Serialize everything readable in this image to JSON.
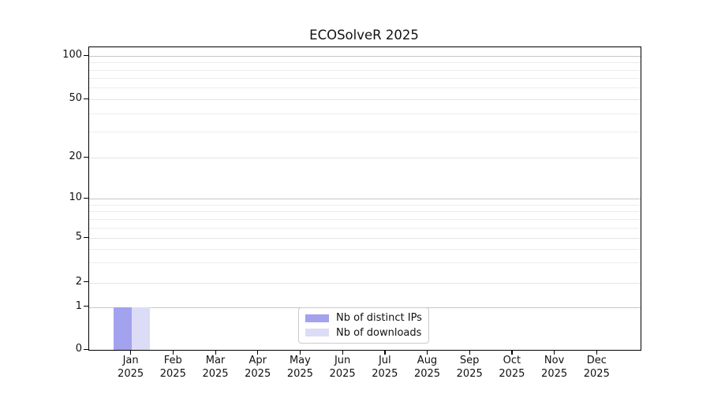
{
  "chart_data": {
    "type": "bar",
    "title": "ECOSolveR 2025",
    "categories": [
      "Jan 2025",
      "Feb 2025",
      "Mar 2025",
      "Apr 2025",
      "May 2025",
      "Jun 2025",
      "Jul 2025",
      "Aug 2025",
      "Sep 2025",
      "Oct 2025",
      "Nov 2025",
      "Dec 2025"
    ],
    "series": [
      {
        "name": "Nb of distinct IPs",
        "color": "#a2a2ef",
        "values": [
          1,
          0,
          0,
          0,
          0,
          0,
          0,
          0,
          0,
          0,
          0,
          0
        ]
      },
      {
        "name": "Nb of downloads",
        "color": "#dcdcf7",
        "values": [
          1,
          0,
          0,
          0,
          0,
          0,
          0,
          0,
          0,
          0,
          0,
          0
        ]
      }
    ],
    "yticks": [
      0,
      1,
      2,
      5,
      10,
      20,
      50,
      100
    ],
    "yscale": "log-like",
    "xlabel": "",
    "ylabel": "",
    "grid": "on",
    "legend_position": "inside-bottom-center"
  },
  "colors": {
    "bar_distinct_ips": "#a2a2ef",
    "bar_downloads": "#dcdcf7",
    "grid_decade": "#c6c6c6",
    "grid_minor": "#ececec",
    "axis": "#000000",
    "background": "#ffffff"
  }
}
